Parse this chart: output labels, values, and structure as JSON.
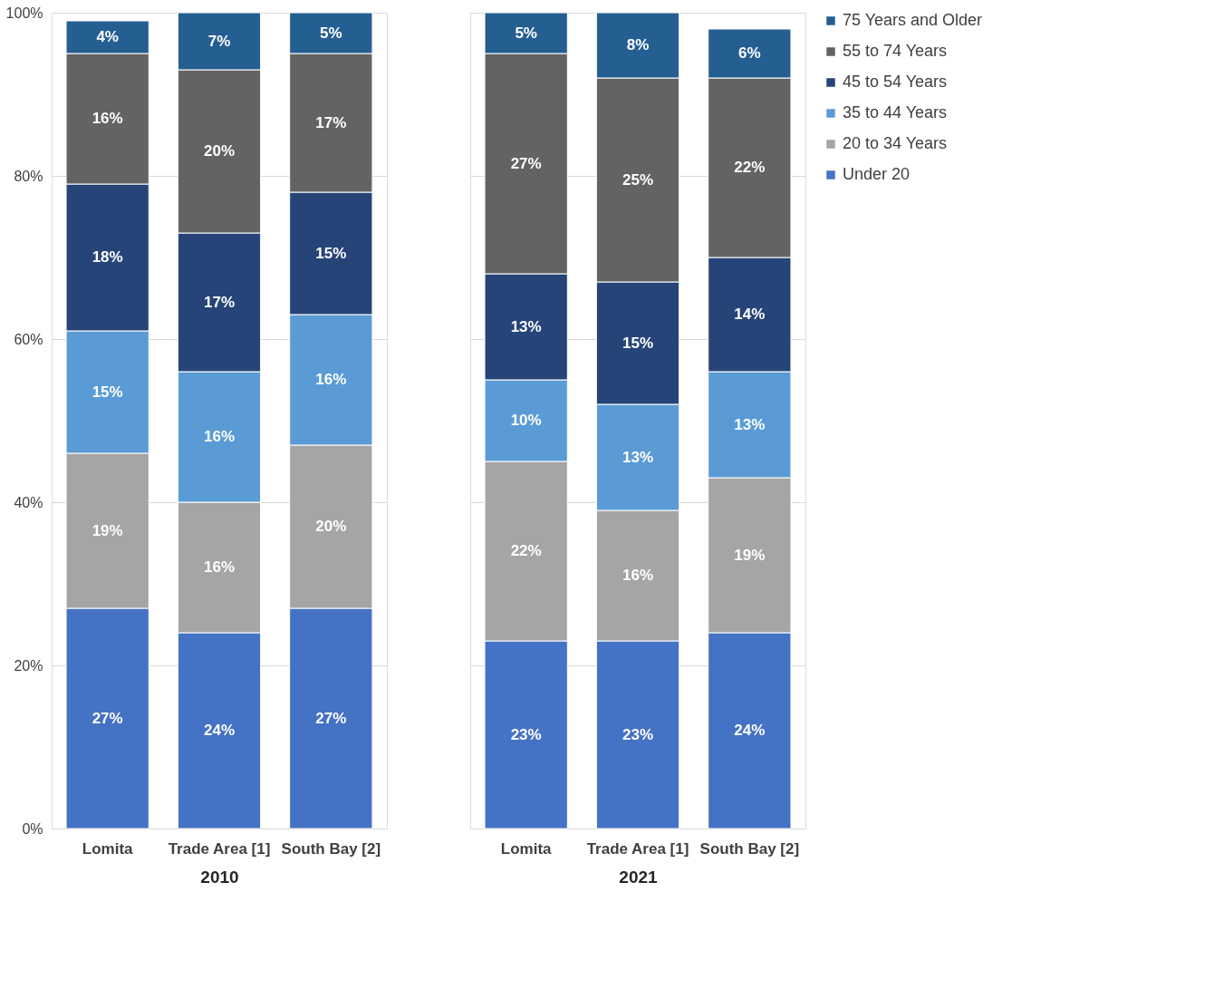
{
  "chart_data": [
    {
      "type": "bar",
      "stacked": true,
      "xlabel": "2010",
      "categories": [
        "Lomita",
        "Trade Area [1]",
        "South Bay [2]"
      ],
      "series": [
        {
          "name": "Under 20",
          "color": "#4472c4",
          "values": [
            27,
            24,
            27
          ],
          "value_labels": [
            "27%",
            "24%",
            "27%"
          ]
        },
        {
          "name": "20 to 34 Years",
          "color": "#a5a5a5",
          "values": [
            19,
            16,
            20
          ],
          "value_labels": [
            "19%",
            "16%",
            "20%"
          ]
        },
        {
          "name": "35 to 44 Years",
          "color": "#5b9bd5",
          "values": [
            15,
            16,
            16
          ],
          "value_labels": [
            "15%",
            "16%",
            "16%"
          ]
        },
        {
          "name": "45 to 54 Years",
          "color": "#264478",
          "values": [
            18,
            17,
            15
          ],
          "value_labels": [
            "18%",
            "17%",
            "15%"
          ]
        },
        {
          "name": "55 to 74 Years",
          "color": "#636363",
          "values": [
            16,
            20,
            17
          ],
          "value_labels": [
            "16%",
            "20%",
            "17%"
          ]
        },
        {
          "name": "75 Years and Older",
          "color": "#255e91",
          "values": [
            4,
            7,
            5
          ],
          "value_labels": [
            "4%",
            "7%",
            "5%"
          ]
        }
      ],
      "ylim": [
        0,
        100
      ],
      "yticks": [
        {
          "value": 0,
          "label": "0%"
        },
        {
          "value": 20,
          "label": "20%"
        },
        {
          "value": 40,
          "label": "40%"
        },
        {
          "value": 60,
          "label": "60%"
        },
        {
          "value": 80,
          "label": "80%"
        },
        {
          "value": 100,
          "label": "100%"
        }
      ],
      "grid": "y",
      "legend": "right"
    },
    {
      "type": "bar",
      "stacked": true,
      "xlabel": "2021",
      "categories": [
        "Lomita",
        "Trade Area [1]",
        "South Bay [2]"
      ],
      "series": [
        {
          "name": "Under 20",
          "color": "#4472c4",
          "values": [
            23,
            23,
            24
          ],
          "value_labels": [
            "23%",
            "23%",
            "24%"
          ]
        },
        {
          "name": "20 to 34 Years",
          "color": "#a5a5a5",
          "values": [
            22,
            16,
            19
          ],
          "value_labels": [
            "22%",
            "16%",
            "19%"
          ]
        },
        {
          "name": "35 to 44 Years",
          "color": "#5b9bd5",
          "values": [
            10,
            13,
            13
          ],
          "value_labels": [
            "10%",
            "13%",
            "13%"
          ]
        },
        {
          "name": "45 to 54 Years",
          "color": "#264478",
          "values": [
            13,
            15,
            14
          ],
          "value_labels": [
            "13%",
            "15%",
            "14%"
          ]
        },
        {
          "name": "55 to 74 Years",
          "color": "#636363",
          "values": [
            27,
            25,
            22
          ],
          "value_labels": [
            "27%",
            "25%",
            "22%"
          ]
        },
        {
          "name": "75 Years and Older",
          "color": "#255e91",
          "values": [
            5,
            8,
            6
          ],
          "value_labels": [
            "5%",
            "8%",
            "6%"
          ]
        }
      ],
      "ylim": [
        0,
        100
      ],
      "yticks": [
        {
          "value": 0,
          "label": null
        },
        {
          "value": 20,
          "label": null
        },
        {
          "value": 40,
          "label": null
        },
        {
          "value": 60,
          "label": null
        },
        {
          "value": 80,
          "label": null
        },
        {
          "value": 100,
          "label": null
        }
      ],
      "grid": "y",
      "tick_labels": "x",
      "legend": "right"
    }
  ]
}
